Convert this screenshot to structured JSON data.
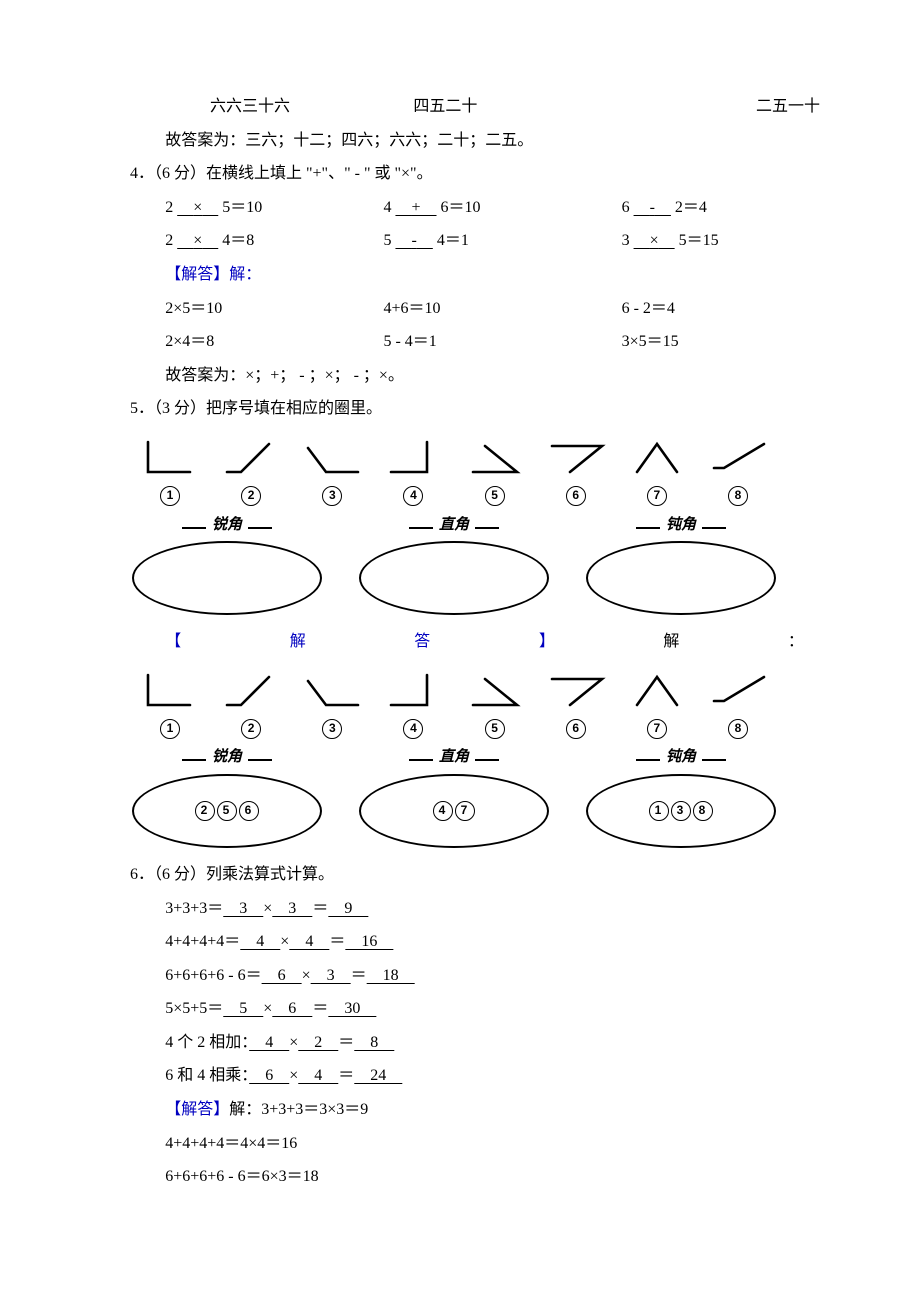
{
  "top_line": {
    "a": "六六三十六",
    "b": "四五二十",
    "c": "二五一十"
  },
  "top_answer": "故答案为：三六；十二；四六；六六；二十；二五。",
  "q4": {
    "head": "4．（6 分）在横线上填上 \"+\"、\" - \" 或 \"×\"。",
    "r1": {
      "a": {
        "l": "2",
        "op": "×",
        "r": "5＝10"
      },
      "b": {
        "l": "4",
        "op": "+",
        "r": "6＝10"
      },
      "c": {
        "l": "6",
        "op": "-",
        "r": "2＝4"
      }
    },
    "r2": {
      "a": {
        "l": "2",
        "op": "×",
        "r": "4＝8"
      },
      "b": {
        "l": "5",
        "op": "-",
        "r": "4＝1"
      },
      "c": {
        "l": "3",
        "op": "×",
        "r": "5＝15"
      }
    },
    "ans_label": "【解答】解：",
    "s1": {
      "a": "2×5＝10",
      "b": "4+6＝10",
      "c": "6 - 2＝4"
    },
    "s2": {
      "a": "2×4＝8",
      "b": "5 - 4＝1",
      "c": "3×5＝15"
    },
    "tail": "故答案为：×；+； - ；×； - ；×。"
  },
  "q5": {
    "head": "5．（3 分）把序号填在相应的圈里。",
    "labels": {
      "acute": "锐角",
      "right": "直角",
      "obtuse": "钝角"
    },
    "nums": [
      "①",
      "②",
      "③",
      "④",
      "⑤",
      "⑥",
      "⑦",
      "⑧"
    ],
    "answer_bar": {
      "open": "【",
      "w1": "解",
      "w2": "答",
      "close": "】",
      "w3": "解",
      "colon": "："
    },
    "fill": {
      "acute": [
        "②",
        "⑤",
        "⑥"
      ],
      "right": [
        "④",
        "⑦"
      ],
      "obtuse": [
        "①",
        "③",
        "⑧"
      ]
    }
  },
  "q6": {
    "head": "6．（6 分）列乘法算式计算。",
    "rows": [
      {
        "pre": "3+3+3＝",
        "a": "3",
        "b": "3",
        "c": "9"
      },
      {
        "pre": "4+4+4+4＝",
        "a": "4",
        "b": "4",
        "c": "16"
      },
      {
        "pre": "6+6+6+6 - 6＝",
        "a": "6",
        "b": "3",
        "c": "18"
      },
      {
        "pre": "5×5+5＝",
        "a": "5",
        "b": "6",
        "c": "30"
      },
      {
        "pre": "4 个 2 相加：",
        "a": "4",
        "b": "2",
        "c": "8"
      },
      {
        "pre": "6 和 4 相乘：",
        "a": "6",
        "b": "4",
        "c": "24"
      }
    ],
    "ans_label": "【解答】",
    "sol": [
      "解：3+3+3＝3×3＝9",
      "4+4+4+4＝4×4＝16",
      "6+6+6+6 - 6＝6×3＝18"
    ]
  }
}
